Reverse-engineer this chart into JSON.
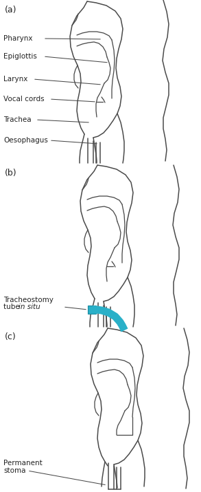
{
  "bg_color": "#ffffff",
  "line_color": "#4a4a4a",
  "line_width": 1.1,
  "label_color": "#222222",
  "tube_color": "#2ab0c8",
  "tube_outline_color": "#1a8aa0",
  "panel_a_label": "(a)",
  "panel_b_label": "(b)",
  "panel_c_label": "(c)",
  "label_pharynx": "Pharynx",
  "label_epiglottis": "Epiglottis",
  "label_larynx": "Larynx",
  "label_vocal_cords": "Vocal cords",
  "label_trachea": "Trachea",
  "label_oesophagus": "Oesophagus",
  "label_tracheostomy": "Tracheostomy",
  "label_tube_in_situ": "tube ",
  "label_in_situ_italic": "in situ",
  "label_permanent": "Permanent",
  "label_stoma": "stoma",
  "font_size": 7.5,
  "panel_label_size": 9,
  "figsize": [
    2.93,
    7.15
  ],
  "dpi": 100
}
